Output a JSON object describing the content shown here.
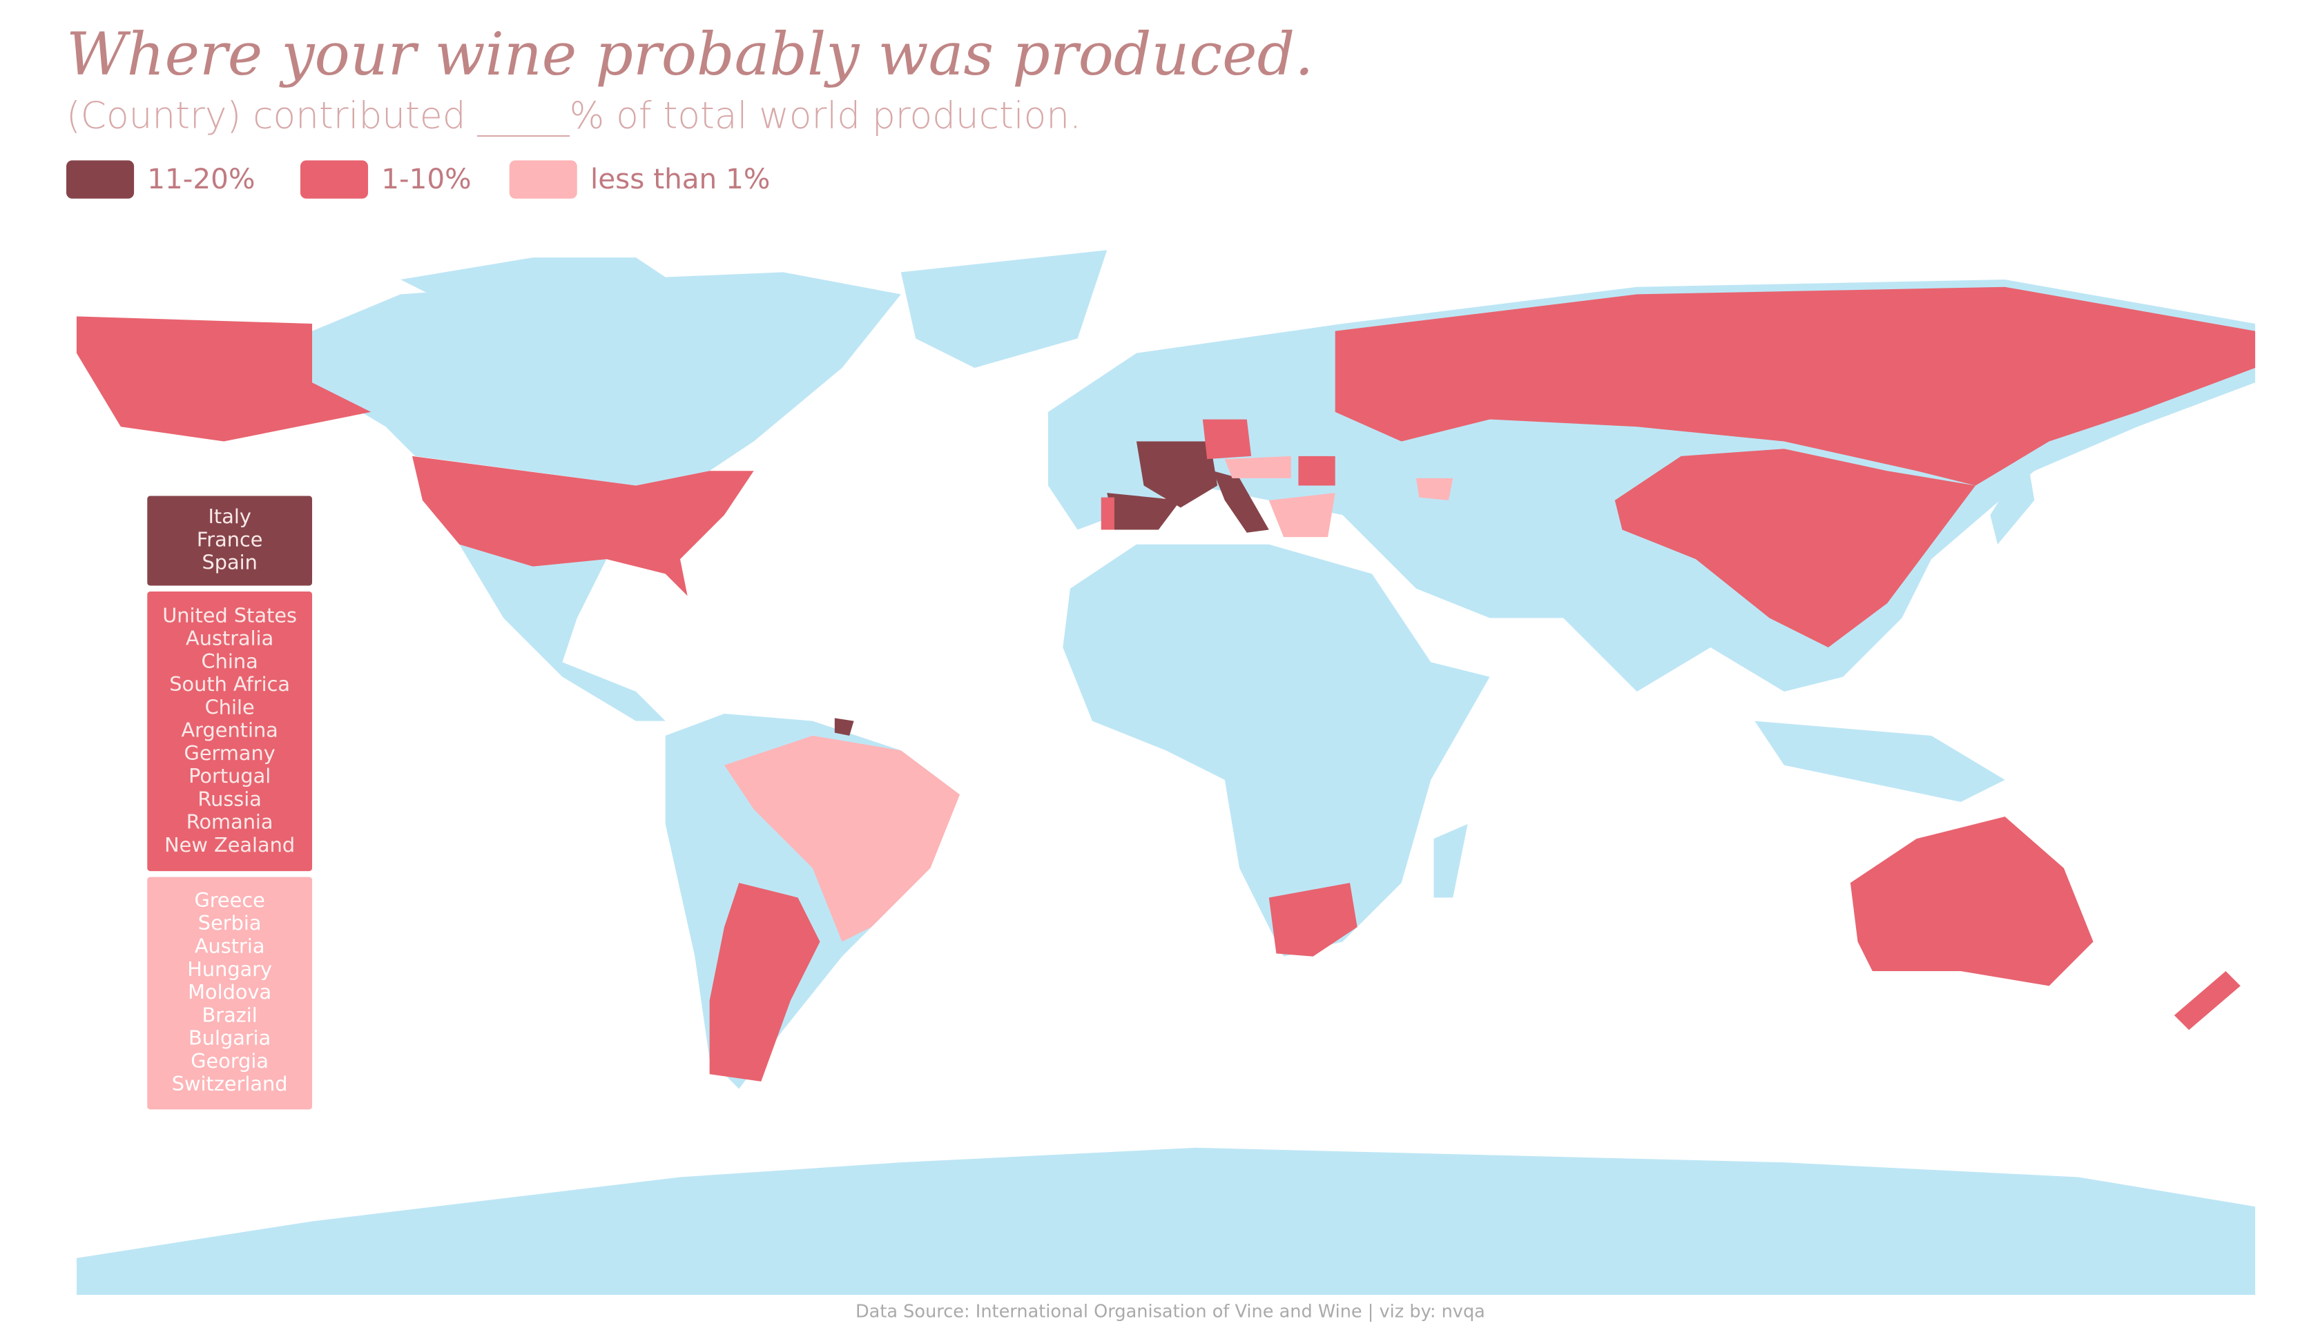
{
  "title": "Where your wine probably was produced.",
  "subtitle": "(Country) contributed _____% of total world production.",
  "legend": [
    {
      "label": "11-20%",
      "color": "#86444a",
      "countries": [
        "Italy",
        "France",
        "Spain"
      ]
    },
    {
      "label": "1-10%",
      "color": "#e8636f",
      "countries": [
        "United States",
        "Australia",
        "China",
        "South Africa",
        "Chile",
        "Argentina",
        "Germany",
        "Portugal",
        "Russia",
        "Romania",
        "New Zealand"
      ]
    },
    {
      "label": "less than 1%",
      "color": "#fdb5b8",
      "countries": [
        "Greece",
        "Serbia",
        "Austria",
        "Hungary",
        "Moldova",
        "Brazil",
        "Bulgaria",
        "Georgia",
        "Switzerland"
      ]
    }
  ],
  "source": "Data Source: International Organisation of Vine and Wine | viz by: nvqa"
}
